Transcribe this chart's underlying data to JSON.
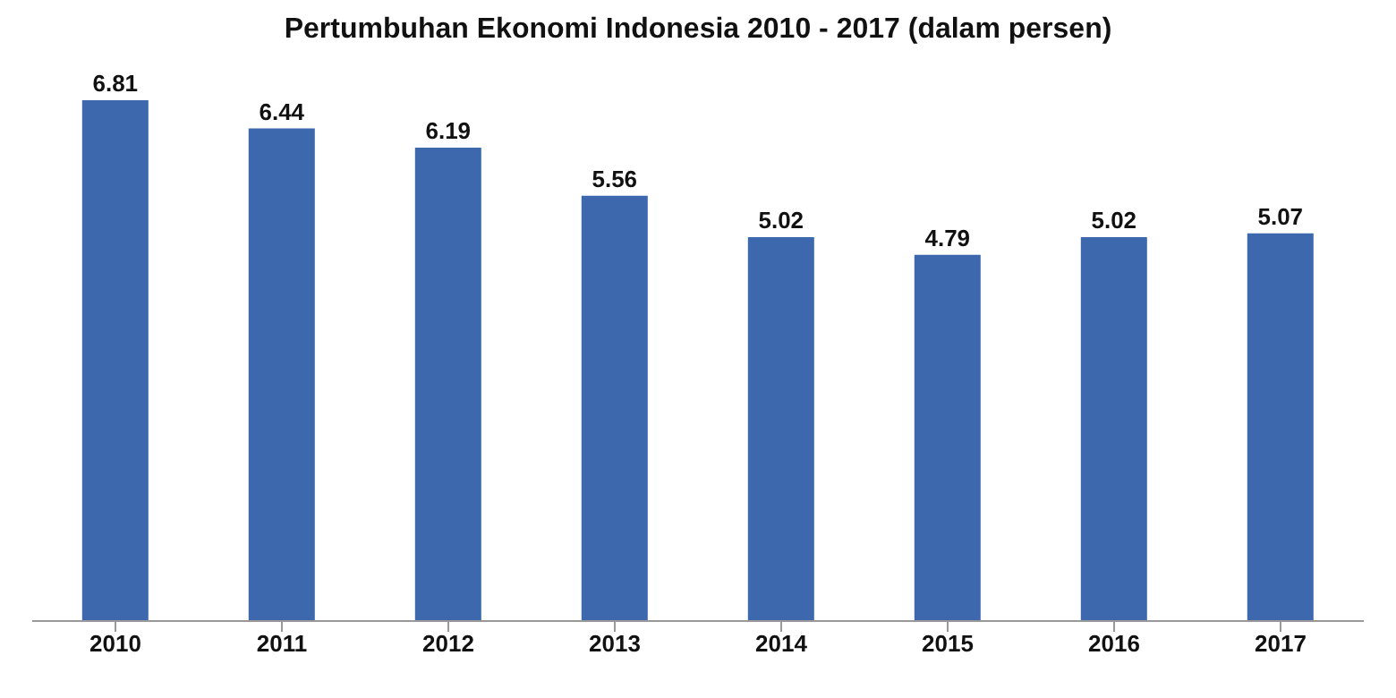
{
  "chart_data": {
    "type": "bar",
    "title": "Pertumbuhan Ekonomi Indonesia 2010 - 2017 (dalam persen)",
    "categories": [
      "2010",
      "2011",
      "2012",
      "2013",
      "2014",
      "2015",
      "2016",
      "2017"
    ],
    "values": [
      6.81,
      6.44,
      6.19,
      5.56,
      5.02,
      4.79,
      5.02,
      5.07
    ],
    "color": "#3d68ae",
    "data_labels": true,
    "grid": false,
    "legend": false
  }
}
